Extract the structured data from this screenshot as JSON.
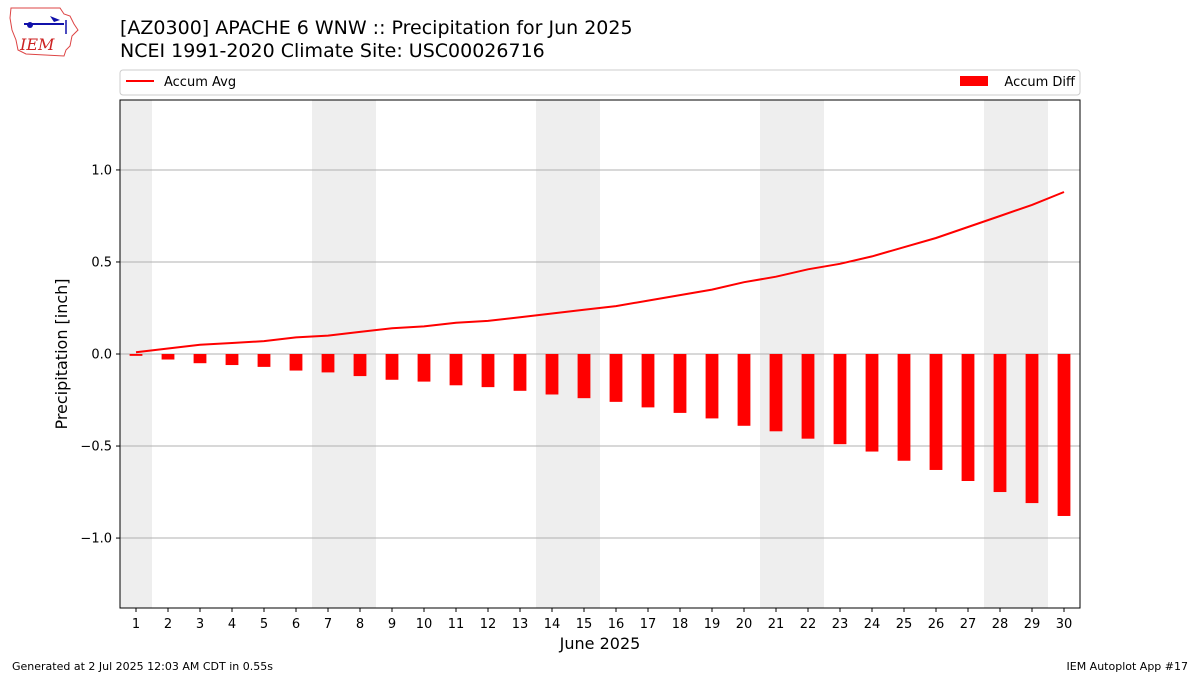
{
  "header": {
    "title_line1": "[AZ0300] APACHE 6 WNW :: Precipitation for Jun 2025",
    "title_line2": "NCEI 1991-2020 Climate Site: USC00026716",
    "logo_text": "IEM"
  },
  "footer": {
    "left": "Generated at 2 Jul 2025 12:03 AM CDT in 0.55s",
    "right": "IEM Autoplot App #17"
  },
  "colors": {
    "line": "#ff0000",
    "bars": "#ff0000",
    "weekend_shade": "#eeeeee",
    "grid": "#b0b0b0"
  },
  "chart_data": {
    "type": "bar",
    "xlabel": "June 2025",
    "ylabel": "Precipitation [inch]",
    "ylim": [
      -1.38,
      1.38
    ],
    "yticks": [
      -1.0,
      -0.5,
      0.0,
      0.5,
      1.0
    ],
    "ytick_labels": [
      "−1.0",
      "−0.5",
      "0.0",
      "0.5",
      "1.0"
    ],
    "xlim": [
      0.5,
      30.5
    ],
    "grid": "horizontal",
    "legend_placement": "top, above plot",
    "x": [
      1,
      2,
      3,
      4,
      5,
      6,
      7,
      8,
      9,
      10,
      11,
      12,
      13,
      14,
      15,
      16,
      17,
      18,
      19,
      20,
      21,
      22,
      23,
      24,
      25,
      26,
      27,
      28,
      29,
      30
    ],
    "weekend_days": [
      1,
      7,
      8,
      14,
      15,
      21,
      22,
      28,
      29
    ],
    "series": [
      {
        "name": "Accum Avg",
        "type": "line",
        "values": [
          0.01,
          0.03,
          0.05,
          0.06,
          0.07,
          0.09,
          0.1,
          0.12,
          0.14,
          0.15,
          0.17,
          0.18,
          0.2,
          0.22,
          0.24,
          0.26,
          0.29,
          0.32,
          0.35,
          0.39,
          0.42,
          0.46,
          0.49,
          0.53,
          0.58,
          0.63,
          0.69,
          0.75,
          0.81,
          0.88
        ]
      },
      {
        "name": "Accum Diff",
        "type": "bar",
        "values": [
          -0.01,
          -0.03,
          -0.05,
          -0.06,
          -0.07,
          -0.09,
          -0.1,
          -0.12,
          -0.14,
          -0.15,
          -0.17,
          -0.18,
          -0.2,
          -0.22,
          -0.24,
          -0.26,
          -0.29,
          -0.32,
          -0.35,
          -0.39,
          -0.42,
          -0.46,
          -0.49,
          -0.53,
          -0.58,
          -0.63,
          -0.69,
          -0.75,
          -0.81,
          -0.88
        ]
      }
    ]
  }
}
